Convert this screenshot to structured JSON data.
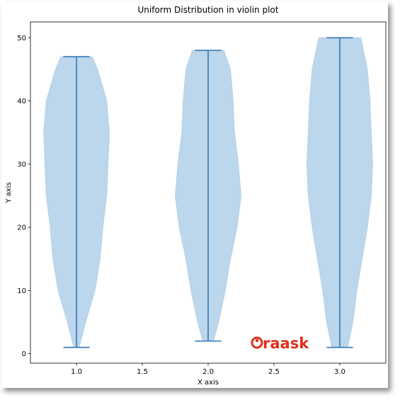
{
  "chart_data": {
    "type": "violin",
    "title": "Uniform Distribution in violin plot",
    "xlabel": "X axis",
    "ylabel": "Y axis",
    "xlim": [
      0.65,
      3.35
    ],
    "ylim": [
      -1.5,
      52.5
    ],
    "xticks": [
      1.0,
      1.5,
      2.0,
      2.5,
      3.0
    ],
    "xtick_labels": [
      "1.0",
      "1.5",
      "2.0",
      "2.5",
      "3.0"
    ],
    "yticks": [
      0,
      10,
      20,
      30,
      40,
      50
    ],
    "ytick_labels": [
      "0",
      "10",
      "20",
      "30",
      "40",
      "50"
    ],
    "grid": false,
    "violins": [
      {
        "position": 1.0,
        "min": 1,
        "max": 47,
        "profile": [
          [
            1,
            0.02
          ],
          [
            5,
            0.07
          ],
          [
            10,
            0.14
          ],
          [
            15,
            0.18
          ],
          [
            20,
            0.2
          ],
          [
            25,
            0.23
          ],
          [
            30,
            0.24
          ],
          [
            35,
            0.25
          ],
          [
            40,
            0.23
          ],
          [
            45,
            0.16
          ],
          [
            47,
            0.12
          ]
        ]
      },
      {
        "position": 2.0,
        "min": 2,
        "max": 48,
        "profile": [
          [
            2,
            0.04
          ],
          [
            5,
            0.08
          ],
          [
            10,
            0.13
          ],
          [
            15,
            0.17
          ],
          [
            20,
            0.22
          ],
          [
            25,
            0.25
          ],
          [
            30,
            0.23
          ],
          [
            35,
            0.2
          ],
          [
            40,
            0.19
          ],
          [
            45,
            0.17
          ],
          [
            48,
            0.12
          ]
        ]
      },
      {
        "position": 3.0,
        "min": 1,
        "max": 50,
        "profile": [
          [
            1,
            0.06
          ],
          [
            5,
            0.1
          ],
          [
            10,
            0.13
          ],
          [
            15,
            0.17
          ],
          [
            20,
            0.21
          ],
          [
            25,
            0.24
          ],
          [
            30,
            0.25
          ],
          [
            35,
            0.24
          ],
          [
            40,
            0.23
          ],
          [
            45,
            0.21
          ],
          [
            50,
            0.16
          ]
        ]
      }
    ],
    "colors": {
      "body": "#b8d4ea",
      "line": "#3178b5"
    }
  },
  "watermark": {
    "text": "raask"
  }
}
